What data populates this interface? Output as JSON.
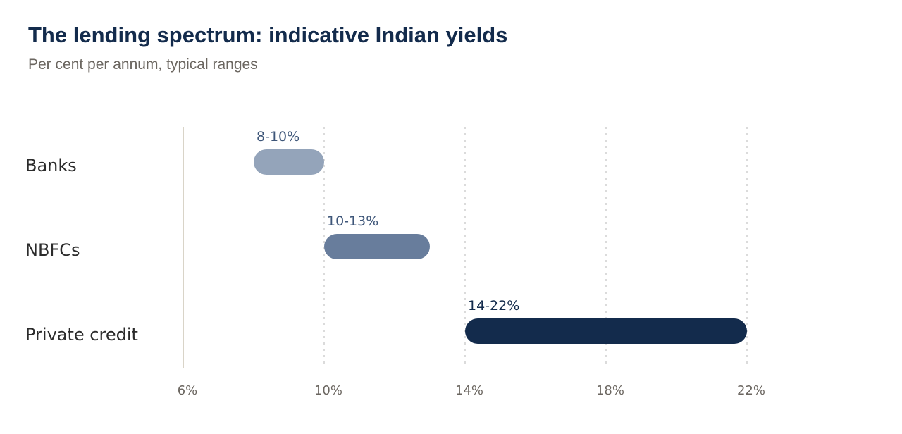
{
  "title": "The lending spectrum: indicative Indian yields",
  "subtitle": "Per cent per annum, typical ranges",
  "colors": {
    "background": "#ffffff",
    "title": "#132b4c",
    "subtitle": "#6b6660",
    "axis_line": "#d9d4c8",
    "gridline": "#cfcfcf"
  },
  "chart_data": {
    "type": "range-bar",
    "orientation": "horizontal",
    "title": "The lending spectrum: indicative Indian yields",
    "subtitle": "Per cent per annum, typical ranges",
    "xlim": [
      6,
      22
    ],
    "x_ticks": [
      6,
      10,
      14,
      18,
      22
    ],
    "x_tick_labels": [
      "6%",
      "10%",
      "14%",
      "18%",
      "22%"
    ],
    "grid": "vertical dotted at ticks",
    "categories": [
      "Banks",
      "NBFCs",
      "Private credit"
    ],
    "series": [
      {
        "category": "Banks",
        "low": 8,
        "high": 10,
        "label": "8-10%",
        "color": "#94a4ba",
        "label_color": "#3e5679"
      },
      {
        "category": "NBFCs",
        "low": 10,
        "high": 13,
        "label": "10-13%",
        "color": "#687d9c",
        "label_color": "#3e5679"
      },
      {
        "category": "Private credit",
        "low": 14,
        "high": 22,
        "label": "14-22%",
        "color": "#132b4c",
        "label_color": "#132b4c"
      }
    ]
  }
}
